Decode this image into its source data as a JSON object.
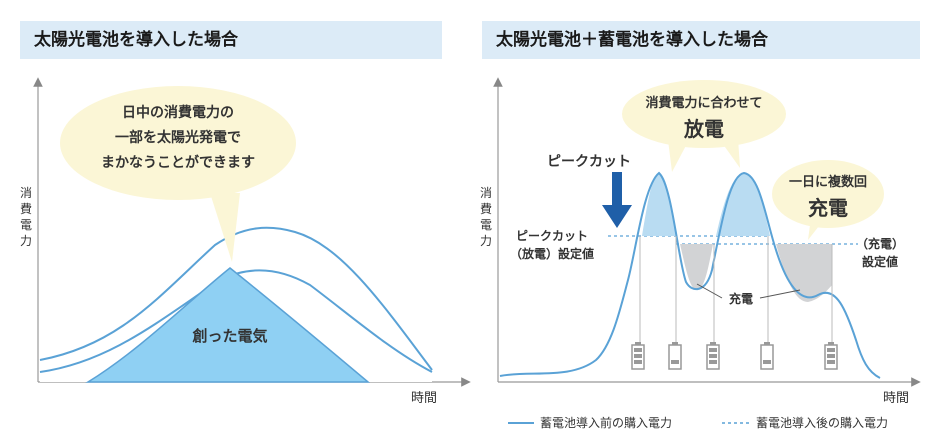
{
  "left_panel": {
    "title": "太陽光電池を導入した場合",
    "y_axis_label": [
      "消",
      "費",
      "電",
      "力"
    ],
    "x_axis_label": "時間",
    "bubble_lines": [
      "日中の消費電力の",
      "一部を太陽光発電で",
      "まかなうことができます"
    ],
    "area_label": "創った電気"
  },
  "right_panel": {
    "title": "太陽光電池＋蓄電池を導入した場合",
    "y_axis_label": [
      "消",
      "費",
      "電",
      "力"
    ],
    "x_axis_label": "時間",
    "peak_cut_label": "ピークカット",
    "discharge_setting_lines": [
      "ピークカット",
      "（放電）設定値"
    ],
    "discharge_bubble_lines": [
      "消費電力に合わせて",
      "放電"
    ],
    "charge_bubble_lines": [
      "一日に複数回",
      "充電"
    ],
    "charge_setting_lines": [
      "（充電）",
      "設定値"
    ],
    "charge_label": "充電",
    "legend_before": "蓄電池導入前の購入電力",
    "legend_after": "蓄電池導入後の購入電力"
  },
  "colors": {
    "title_bg": "#dcebf7",
    "line_blue": "#5aa2d6",
    "fill_blue": "#8fd0f3",
    "discharge_fill": "#b9dcf2",
    "charge_fill": "#d2d3d5",
    "bubble": "#fbf6d6",
    "arrow": "#1f5fa8"
  }
}
